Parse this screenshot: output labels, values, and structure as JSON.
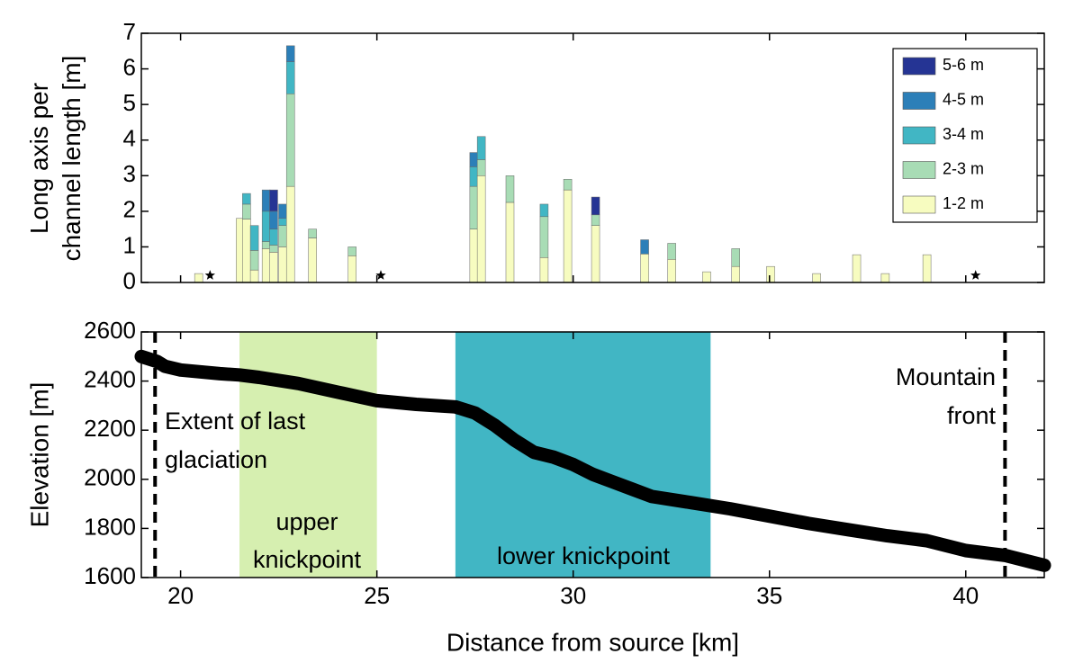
{
  "chart_data": [
    {
      "type": "stacked_bar",
      "ylabel": [
        "Long axis per",
        "channel length [m]"
      ],
      "x": [
        20.46,
        21.52,
        21.68,
        21.88,
        22.18,
        22.37,
        22.6,
        22.8,
        23.36,
        24.37,
        27.47,
        27.66,
        28.39,
        29.26,
        29.86,
        30.57,
        31.82,
        32.51,
        33.4,
        34.14,
        35.03,
        36.2,
        37.22,
        37.95,
        39.01
      ],
      "series": [
        {
          "name": "1-2 m",
          "color": "#f7fcc0",
          "values": [
            0.25,
            1.8,
            1.78,
            0.35,
            0.95,
            0.85,
            1.0,
            2.7,
            1.25,
            0.75,
            1.5,
            3.0,
            2.25,
            0.7,
            2.6,
            1.6,
            0.8,
            0.65,
            0.3,
            0.45,
            0.45,
            0.25,
            0.78,
            0.25,
            0.78
          ]
        },
        {
          "name": "2-3 m",
          "color": "#a8dcb5",
          "values": [
            null,
            null,
            0.42,
            0.55,
            0.2,
            0.2,
            0.6,
            2.6,
            0.25,
            0.25,
            1.2,
            0.45,
            0.75,
            1.15,
            0.3,
            0.3,
            null,
            0.45,
            null,
            0.5,
            null,
            null,
            null,
            null,
            null
          ]
        },
        {
          "name": "3-4 m",
          "color": "#41b6c4",
          "values": [
            null,
            null,
            0.3,
            0.7,
            0.85,
            0.45,
            0.2,
            0.9,
            null,
            null,
            0.55,
            0.65,
            null,
            0.35,
            null,
            null,
            null,
            null,
            null,
            null,
            null,
            null,
            null,
            null,
            null
          ]
        },
        {
          "name": "4-5 m",
          "color": "#2c7fb8",
          "values": [
            null,
            null,
            null,
            null,
            0.6,
            0.5,
            0.4,
            0.45,
            null,
            null,
            0.4,
            null,
            null,
            null,
            null,
            null,
            0.4,
            null,
            null,
            null,
            null,
            null,
            null,
            null,
            null
          ]
        },
        {
          "name": "5-6 m",
          "color": "#253494",
          "values": [
            null,
            null,
            null,
            null,
            null,
            0.6,
            null,
            null,
            null,
            null,
            null,
            null,
            null,
            null,
            null,
            0.5,
            null,
            null,
            null,
            null,
            null,
            null,
            null,
            null,
            null
          ]
        }
      ],
      "stars": {
        "x": [
          20.75,
          25.1,
          40.25
        ],
        "y": [
          0.2,
          0.2,
          0.2
        ]
      },
      "xlim": [
        19,
        42
      ],
      "xticks": [
        20,
        25,
        30,
        35,
        40
      ],
      "ylim": [
        0,
        7
      ],
      "yticks": [
        0,
        1,
        2,
        3,
        4,
        5,
        6,
        7
      ],
      "legend": "upper right"
    },
    {
      "type": "line",
      "xlabel": "Distance from source [km]",
      "ylabel": "Elevation [m]",
      "x": [
        19.0,
        19.4,
        19.6,
        20,
        21,
        21.5,
        22,
        23,
        24,
        25,
        26,
        27,
        27.5,
        28,
        28.5,
        29,
        29.5,
        30,
        30.5,
        31,
        31.5,
        32,
        33,
        34,
        35,
        36,
        37,
        38,
        39,
        40,
        41,
        42
      ],
      "series": [
        {
          "color": "#000000",
          "values": [
            2500,
            2480,
            2460,
            2445,
            2430,
            2425,
            2415,
            2390,
            2355,
            2320,
            2305,
            2295,
            2270,
            2220,
            2160,
            2110,
            2090,
            2060,
            2020,
            1990,
            1960,
            1930,
            1905,
            1880,
            1850,
            1820,
            1795,
            1770,
            1750,
            1710,
            1690,
            1650
          ]
        }
      ],
      "spans": [
        {
          "range": [
            21.5,
            25.0
          ],
          "color": "#d6efb0",
          "label": [
            "upper",
            "knickpoint"
          ]
        },
        {
          "range": [
            27.0,
            33.5
          ],
          "color": "#41b6c4",
          "label": [
            "lower knickpoint"
          ]
        }
      ],
      "vlines": [
        {
          "x": 19.35,
          "label": [
            "Extent of last",
            "glaciation"
          ]
        },
        {
          "x": 41.0,
          "label": [
            "Mountain",
            "front"
          ]
        }
      ],
      "xlim": [
        19,
        42
      ],
      "xticks": [
        20,
        25,
        30,
        35,
        40
      ],
      "ylim": [
        1600,
        2600
      ],
      "yticks": [
        1600,
        1800,
        2000,
        2200,
        2400,
        2600
      ]
    }
  ]
}
